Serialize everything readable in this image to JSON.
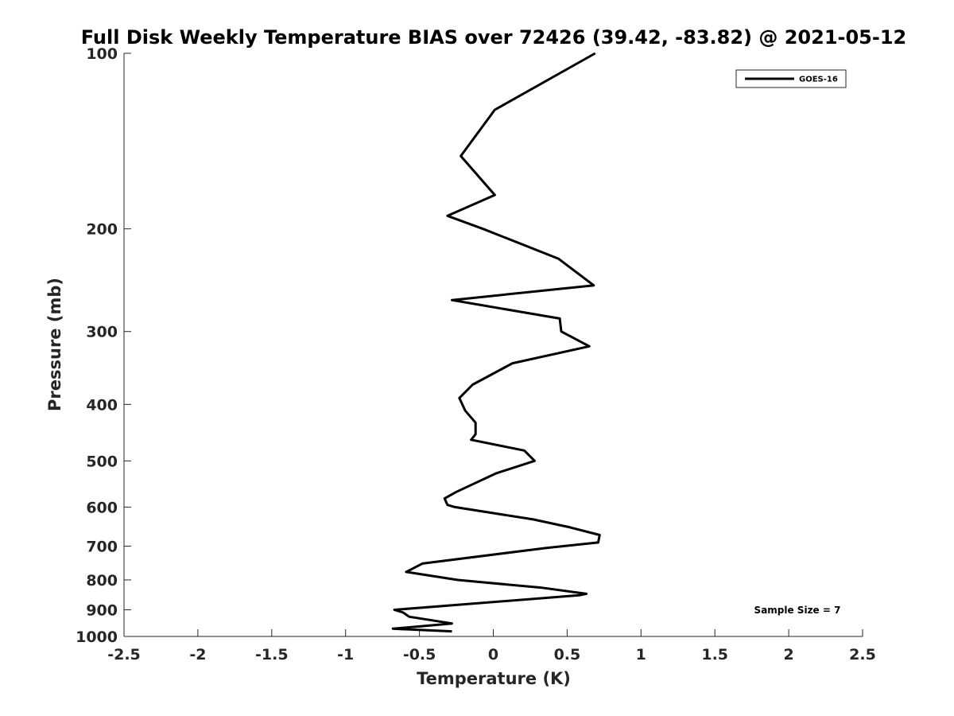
{
  "chart_data": {
    "type": "line",
    "title": "Full Disk Weekly Temperature BIAS over 72426 (39.42, -83.82) @ 2021-05-12",
    "xlabel": "Temperature (K)",
    "ylabel": "Pressure (mb)",
    "xlim": [
      -2.5,
      2.5
    ],
    "ylim": [
      100,
      1000
    ],
    "y_scale": "log",
    "y_reversed": true,
    "grid": false,
    "x_ticks": [
      "-2.5",
      "-2",
      "-1.5",
      "-1",
      "-0.5",
      "0",
      "0.5",
      "1",
      "1.5",
      "2",
      "2.5"
    ],
    "x_tick_values": [
      -2.5,
      -2,
      -1.5,
      -1,
      -0.5,
      0,
      0.5,
      1,
      1.5,
      2,
      2.5
    ],
    "y_ticks": [
      "100",
      "200",
      "300",
      "400",
      "500",
      "600",
      "700",
      "800",
      "900",
      "1000"
    ],
    "y_tick_values": [
      100,
      200,
      300,
      400,
      500,
      600,
      700,
      800,
      900,
      1000
    ],
    "legend_position": "top-right",
    "series": [
      {
        "name": "GOES-16",
        "color": "#000000",
        "points": [
          {
            "x": 0.69,
            "p": 100
          },
          {
            "x": 0.01,
            "p": 125
          },
          {
            "x": -0.22,
            "p": 150
          },
          {
            "x": 0.01,
            "p": 175
          },
          {
            "x": -0.31,
            "p": 190
          },
          {
            "x": -0.07,
            "p": 200
          },
          {
            "x": 0.44,
            "p": 225
          },
          {
            "x": 0.68,
            "p": 250
          },
          {
            "x": -0.28,
            "p": 265
          },
          {
            "x": 0.45,
            "p": 285
          },
          {
            "x": 0.46,
            "p": 300
          },
          {
            "x": 0.65,
            "p": 318
          },
          {
            "x": 0.13,
            "p": 340
          },
          {
            "x": -0.14,
            "p": 370
          },
          {
            "x": -0.23,
            "p": 390
          },
          {
            "x": -0.19,
            "p": 410
          },
          {
            "x": -0.12,
            "p": 430
          },
          {
            "x": -0.12,
            "p": 450
          },
          {
            "x": -0.15,
            "p": 460
          },
          {
            "x": 0.21,
            "p": 480
          },
          {
            "x": 0.28,
            "p": 500
          },
          {
            "x": 0.02,
            "p": 525
          },
          {
            "x": -0.25,
            "p": 565
          },
          {
            "x": -0.33,
            "p": 580
          },
          {
            "x": -0.31,
            "p": 595
          },
          {
            "x": -0.26,
            "p": 600
          },
          {
            "x": 0.27,
            "p": 630
          },
          {
            "x": 0.52,
            "p": 650
          },
          {
            "x": 0.72,
            "p": 670
          },
          {
            "x": 0.71,
            "p": 690
          },
          {
            "x": 0.36,
            "p": 705
          },
          {
            "x": -0.48,
            "p": 750
          },
          {
            "x": -0.59,
            "p": 775
          },
          {
            "x": -0.24,
            "p": 800
          },
          {
            "x": 0.33,
            "p": 825
          },
          {
            "x": 0.63,
            "p": 845
          },
          {
            "x": 0.58,
            "p": 850
          },
          {
            "x": -0.67,
            "p": 900
          },
          {
            "x": -0.61,
            "p": 910
          },
          {
            "x": -0.57,
            "p": 925
          },
          {
            "x": -0.28,
            "p": 950
          },
          {
            "x": -0.68,
            "p": 970
          },
          {
            "x": -0.28,
            "p": 980
          }
        ]
      }
    ],
    "annotation": "Sample Size = 7"
  }
}
